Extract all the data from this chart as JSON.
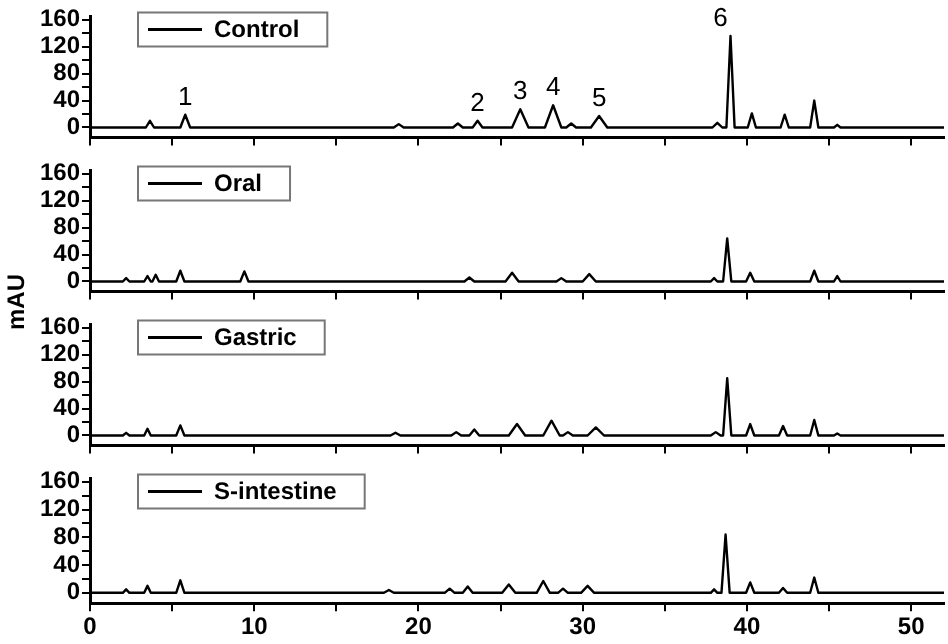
{
  "chart_data": [
    {
      "type": "line",
      "xlim": [
        0,
        52
      ],
      "ylim": [
        -15,
        165
      ],
      "xticks": [
        0,
        {
          "value": 5,
          "label": null
        },
        10,
        {
          "value": 15,
          "label": null
        },
        20,
        {
          "value": 25,
          "label": null
        },
        30,
        {
          "value": 35,
          "label": null
        },
        40,
        {
          "value": 45,
          "label": null
        },
        50
      ],
      "yticks": [
        0,
        {
          "value": 20,
          "label": null
        },
        40,
        {
          "value": 60,
          "label": null
        },
        80,
        {
          "value": 100,
          "label": null
        },
        120,
        {
          "value": 140,
          "label": null
        },
        160
      ],
      "tick_labels": "y",
      "grid": false,
      "legend": "top left",
      "series": [
        {
          "name": "Control",
          "color": "#000000",
          "x": [
            0,
            3.4,
            3.65,
            3.9,
            5.5,
            5.8,
            6.1,
            18.5,
            18.8,
            19.1,
            22.1,
            22.4,
            22.7,
            23.3,
            23.6,
            23.9,
            25.7,
            26.2,
            26.7,
            27.7,
            28.2,
            28.7,
            29.0,
            29.3,
            29.6,
            30.5,
            31.0,
            31.5,
            37.9,
            38.2,
            38.5,
            38.75,
            39.0,
            39.25,
            40.05,
            40.3,
            40.55,
            42.05,
            42.3,
            42.55,
            43.85,
            44.1,
            44.35,
            45.3,
            45.5,
            45.7,
            52
          ],
          "values": [
            0,
            0,
            10,
            0,
            0,
            19,
            0,
            0,
            5,
            0,
            0,
            6,
            0,
            0,
            10,
            0,
            0,
            27,
            0,
            0,
            33,
            0,
            0,
            6,
            0,
            0,
            17,
            0,
            0,
            7,
            0,
            0,
            136,
            0,
            0,
            21,
            0,
            0,
            19,
            0,
            0,
            40,
            0,
            0,
            4,
            0,
            0
          ]
        }
      ],
      "annotations": [
        {
          "text": "1",
          "x": 5.8,
          "y": 19
        },
        {
          "text": "2",
          "x": 23.6,
          "y": 10
        },
        {
          "text": "3",
          "x": 26.2,
          "y": 27
        },
        {
          "text": "4",
          "x": 28.2,
          "y": 33
        },
        {
          "text": "5",
          "x": 31.0,
          "y": 17
        },
        {
          "text": "6",
          "x": 39.0,
          "y": 136
        }
      ]
    },
    {
      "type": "line",
      "xlim": [
        0,
        52
      ],
      "ylim": [
        -15,
        165
      ],
      "xticks": [
        0,
        {
          "value": 5,
          "label": null
        },
        10,
        {
          "value": 15,
          "label": null
        },
        20,
        {
          "value": 25,
          "label": null
        },
        30,
        {
          "value": 35,
          "label": null
        },
        40,
        {
          "value": 45,
          "label": null
        },
        50
      ],
      "yticks": [
        0,
        {
          "value": 20,
          "label": null
        },
        40,
        {
          "value": 60,
          "label": null
        },
        80,
        {
          "value": 100,
          "label": null
        },
        120,
        {
          "value": 140,
          "label": null
        },
        160
      ],
      "tick_labels": "y",
      "grid": false,
      "legend": "top left",
      "ylabel": "mAU",
      "series": [
        {
          "name": "Oral",
          "color": "#000000",
          "x": [
            0,
            2.0,
            2.2,
            2.4,
            3.3,
            3.5,
            3.7,
            3.8,
            4.0,
            4.2,
            5.25,
            5.5,
            5.75,
            9.15,
            9.4,
            9.65,
            22.8,
            23.1,
            23.4,
            25.3,
            25.7,
            26.1,
            28.4,
            28.7,
            29.0,
            30.0,
            30.4,
            30.8,
            37.8,
            38.0,
            38.2,
            38.55,
            38.8,
            39.05,
            39.95,
            40.2,
            40.45,
            43.85,
            44.1,
            44.35,
            45.3,
            45.5,
            45.7,
            52
          ],
          "values": [
            0,
            0,
            5,
            0,
            0,
            8,
            0,
            0,
            10,
            0,
            0,
            16,
            0,
            0,
            15,
            0,
            0,
            6,
            0,
            0,
            13,
            0,
            0,
            5,
            0,
            0,
            11,
            0,
            0,
            5,
            0,
            0,
            64,
            0,
            0,
            13,
            0,
            0,
            16,
            0,
            0,
            8,
            0,
            0
          ]
        }
      ]
    },
    {
      "type": "line",
      "xlim": [
        0,
        52
      ],
      "ylim": [
        -15,
        165
      ],
      "xticks": [
        0,
        {
          "value": 5,
          "label": null
        },
        10,
        {
          "value": 15,
          "label": null
        },
        20,
        {
          "value": 25,
          "label": null
        },
        30,
        {
          "value": 35,
          "label": null
        },
        40,
        {
          "value": 45,
          "label": null
        },
        50
      ],
      "yticks": [
        0,
        {
          "value": 20,
          "label": null
        },
        40,
        {
          "value": 60,
          "label": null
        },
        80,
        {
          "value": 100,
          "label": null
        },
        120,
        {
          "value": 140,
          "label": null
        },
        160
      ],
      "tick_labels": "y",
      "grid": false,
      "legend": "top left",
      "series": [
        {
          "name": "Gastric",
          "color": "#000000",
          "x": [
            0,
            2.0,
            2.2,
            2.4,
            3.3,
            3.5,
            3.7,
            5.25,
            5.5,
            5.75,
            18.3,
            18.6,
            18.9,
            22.0,
            22.3,
            22.6,
            23.1,
            23.4,
            23.7,
            25.5,
            26.0,
            26.5,
            27.6,
            28.1,
            28.6,
            28.8,
            29.1,
            29.4,
            30.3,
            30.8,
            31.3,
            37.8,
            38.1,
            38.4,
            38.55,
            38.8,
            39.05,
            39.95,
            40.2,
            40.45,
            41.95,
            42.2,
            42.45,
            43.85,
            44.1,
            44.35,
            45.3,
            45.5,
            45.7,
            52
          ],
          "values": [
            0,
            0,
            4,
            0,
            0,
            10,
            0,
            0,
            15,
            0,
            0,
            4,
            0,
            0,
            5,
            0,
            0,
            9,
            0,
            0,
            17,
            0,
            0,
            22,
            0,
            0,
            5,
            0,
            0,
            12,
            0,
            0,
            5,
            0,
            0,
            85,
            0,
            0,
            17,
            0,
            0,
            14,
            0,
            0,
            23,
            0,
            0,
            3,
            0,
            0
          ]
        }
      ]
    },
    {
      "type": "line",
      "xlim": [
        0,
        52
      ],
      "ylim": [
        -15,
        165
      ],
      "xticks": [
        0,
        {
          "value": 5,
          "label": null
        },
        10,
        {
          "value": 15,
          "label": null
        },
        20,
        {
          "value": 25,
          "label": null
        },
        30,
        {
          "value": 35,
          "label": null
        },
        40,
        {
          "value": 45,
          "label": null
        },
        50
      ],
      "yticks": [
        0,
        {
          "value": 20,
          "label": null
        },
        40,
        {
          "value": 60,
          "label": null
        },
        80,
        {
          "value": 100,
          "label": null
        },
        120,
        {
          "value": 140,
          "label": null
        },
        160
      ],
      "grid": false,
      "legend": "top left",
      "series": [
        {
          "name": "S-intestine",
          "color": "#000000",
          "x": [
            0,
            2.0,
            2.2,
            2.4,
            3.3,
            3.5,
            3.7,
            5.25,
            5.5,
            5.75,
            17.9,
            18.2,
            18.5,
            21.6,
            21.9,
            22.2,
            22.7,
            23.0,
            23.3,
            25.1,
            25.5,
            25.9,
            27.2,
            27.6,
            28.0,
            28.5,
            28.8,
            29.1,
            29.9,
            30.3,
            30.7,
            37.8,
            38.0,
            38.2,
            38.45,
            38.7,
            38.95,
            39.95,
            40.2,
            40.45,
            41.95,
            42.2,
            42.45,
            43.85,
            44.1,
            44.35,
            52
          ],
          "values": [
            0,
            0,
            5,
            0,
            0,
            10,
            0,
            0,
            18,
            0,
            0,
            4,
            0,
            0,
            6,
            0,
            0,
            9,
            0,
            0,
            12,
            0,
            0,
            17,
            0,
            0,
            6,
            0,
            0,
            10,
            0,
            0,
            5,
            0,
            0,
            84,
            0,
            0,
            15,
            0,
            0,
            7,
            0,
            0,
            22,
            0,
            0
          ]
        }
      ]
    }
  ]
}
